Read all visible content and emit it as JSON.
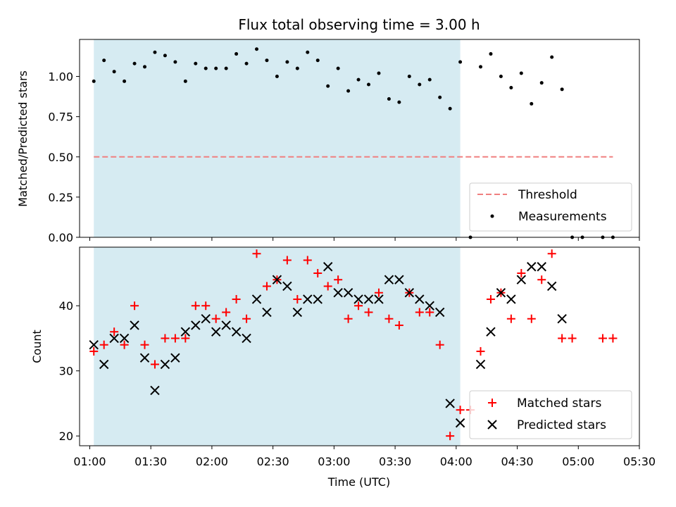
{
  "chart_data": [
    {
      "type": "scatter",
      "title": "Flux total observing time = 3.00 h",
      "xlabel": "",
      "ylabel": "Matched/Predicted stars",
      "ylim": [
        0,
        1.23
      ],
      "yticks": [
        "0.00",
        "0.25",
        "0.50",
        "0.75",
        "1.00"
      ],
      "yticks_values": [
        0,
        0.25,
        0.5,
        0.75,
        1.0
      ],
      "shaded_span": {
        "start": "01:02",
        "end": "04:02",
        "color": "#add8e6"
      },
      "threshold": {
        "name": "Threshold",
        "value": 0.5,
        "color": "#f08080",
        "start": "01:02",
        "end": "05:17"
      },
      "series": [
        {
          "name": "Measurements",
          "color": "#000000",
          "x": [
            "01:02",
            "01:07",
            "01:12",
            "01:17",
            "01:22",
            "01:27",
            "01:32",
            "01:37",
            "01:42",
            "01:47",
            "01:52",
            "01:57",
            "02:02",
            "02:07",
            "02:12",
            "02:17",
            "02:22",
            "02:27",
            "02:32",
            "02:37",
            "02:42",
            "02:47",
            "02:52",
            "02:57",
            "03:02",
            "03:07",
            "03:12",
            "03:17",
            "03:22",
            "03:27",
            "03:32",
            "03:37",
            "03:42",
            "03:47",
            "03:52",
            "03:57",
            "04:02",
            "04:07",
            "04:12",
            "04:17",
            "04:22",
            "04:27",
            "04:32",
            "04:37",
            "04:42",
            "04:47",
            "04:52",
            "04:57",
            "05:02",
            "05:12",
            "05:17"
          ],
          "y": [
            0.97,
            1.1,
            1.03,
            0.97,
            1.08,
            1.06,
            1.15,
            1.13,
            1.09,
            0.97,
            1.08,
            1.05,
            1.05,
            1.05,
            1.14,
            1.08,
            1.17,
            1.1,
            1.0,
            1.09,
            1.05,
            1.15,
            1.1,
            0.94,
            1.05,
            0.91,
            0.98,
            0.95,
            1.02,
            0.86,
            0.84,
            1.0,
            0.95,
            0.98,
            0.87,
            0.8,
            1.09,
            0.0,
            1.06,
            1.14,
            1.0,
            0.93,
            1.02,
            0.83,
            0.96,
            1.12,
            0.92,
            0.0,
            0.0,
            0.0,
            0.0
          ]
        }
      ]
    },
    {
      "type": "scatter",
      "xlabel": "Time (UTC)",
      "ylabel": "Count",
      "ylim": [
        18.5,
        49
      ],
      "yticks": [
        "20",
        "30",
        "40"
      ],
      "yticks_values": [
        20,
        30,
        40
      ],
      "xlim": [
        "00:55",
        "05:30"
      ],
      "xticks": [
        "01:00",
        "01:30",
        "02:00",
        "02:30",
        "03:00",
        "03:30",
        "04:00",
        "04:30",
        "05:00",
        "05:30"
      ],
      "shaded_span": {
        "start": "01:02",
        "end": "04:02",
        "color": "#add8e6"
      },
      "series": [
        {
          "name": "Matched stars",
          "color": "#ff0000",
          "marker": "+",
          "x": [
            "01:02",
            "01:07",
            "01:12",
            "01:17",
            "01:22",
            "01:27",
            "01:32",
            "01:37",
            "01:42",
            "01:47",
            "01:52",
            "01:57",
            "02:02",
            "02:07",
            "02:12",
            "02:17",
            "02:22",
            "02:27",
            "02:32",
            "02:37",
            "02:42",
            "02:47",
            "02:52",
            "02:57",
            "03:02",
            "03:07",
            "03:12",
            "03:17",
            "03:22",
            "03:27",
            "03:32",
            "03:37",
            "03:42",
            "03:47",
            "03:52",
            "03:57",
            "04:02",
            "04:07",
            "04:12",
            "04:17",
            "04:22",
            "04:27",
            "04:32",
            "04:37",
            "04:42",
            "04:47",
            "04:52",
            "04:57",
            "05:12",
            "05:17"
          ],
          "y": [
            33,
            34,
            36,
            34,
            40,
            34,
            31,
            35,
            35,
            35,
            40,
            40,
            38,
            39,
            41,
            38,
            48,
            43,
            44,
            47,
            41,
            47,
            45,
            43,
            44,
            38,
            40,
            39,
            42,
            38,
            37,
            42,
            39,
            39,
            34,
            20,
            24,
            24,
            33,
            41,
            42,
            38,
            45,
            38,
            44,
            48,
            35,
            35,
            35,
            35
          ]
        },
        {
          "name": "Predicted stars",
          "color": "#000000",
          "marker": "x",
          "x": [
            "01:02",
            "01:07",
            "01:12",
            "01:17",
            "01:22",
            "01:27",
            "01:32",
            "01:37",
            "01:42",
            "01:47",
            "01:52",
            "01:57",
            "02:02",
            "02:07",
            "02:12",
            "02:17",
            "02:22",
            "02:27",
            "02:32",
            "02:37",
            "02:42",
            "02:47",
            "02:52",
            "02:57",
            "03:02",
            "03:07",
            "03:12",
            "03:17",
            "03:22",
            "03:27",
            "03:32",
            "03:37",
            "03:42",
            "03:47",
            "03:52",
            "03:57",
            "04:02",
            "04:12",
            "04:17",
            "04:22",
            "04:27",
            "04:32",
            "04:37",
            "04:42",
            "04:47",
            "04:52"
          ],
          "y": [
            34,
            31,
            35,
            35,
            37,
            32,
            27,
            31,
            32,
            36,
            37,
            38,
            36,
            37,
            36,
            35,
            41,
            39,
            44,
            43,
            39,
            41,
            41,
            46,
            42,
            42,
            41,
            41,
            41,
            44,
            44,
            42,
            41,
            40,
            39,
            25,
            22,
            31,
            36,
            42,
            41,
            44,
            46,
            46,
            43,
            38
          ]
        }
      ]
    }
  ]
}
